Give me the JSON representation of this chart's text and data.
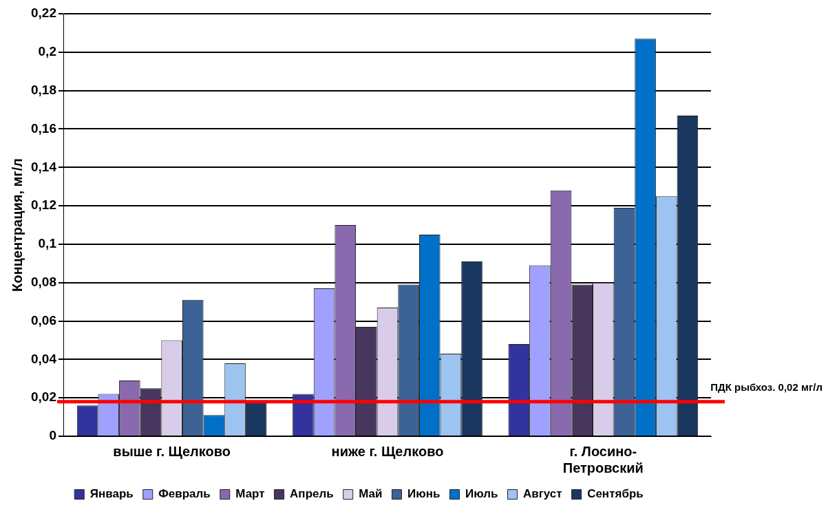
{
  "chart_data": {
    "type": "bar",
    "ylabel": "Концентрация, мг/л",
    "categories": [
      "выше г. Щелково",
      "ниже г. Щелково",
      "г. Лосино-Петровский"
    ],
    "series": [
      {
        "name": "Январь",
        "color": "#3333a0",
        "values": [
          0.016,
          0.022,
          0.048
        ]
      },
      {
        "name": "Февраль",
        "color": "#a0a0ff",
        "values": [
          0.022,
          0.077,
          0.089
        ]
      },
      {
        "name": "Март",
        "color": "#8a6aae",
        "values": [
          0.029,
          0.11,
          0.128
        ]
      },
      {
        "name": "Апрель",
        "color": "#47375e",
        "values": [
          0.025,
          0.057,
          0.079
        ]
      },
      {
        "name": "Май",
        "color": "#d8cce8",
        "values": [
          0.05,
          0.067,
          0.08
        ]
      },
      {
        "name": "Июнь",
        "color": "#3d6296",
        "values": [
          0.071,
          0.079,
          0.119
        ]
      },
      {
        "name": "Июль",
        "color": "#0070c8",
        "values": [
          0.011,
          0.105,
          0.207
        ]
      },
      {
        "name": "Август",
        "color": "#9dc3f0",
        "values": [
          0.038,
          0.043,
          0.125
        ]
      },
      {
        "name": "Сентябрь",
        "color": "#1a3760",
        "values": [
          0.018,
          0.091,
          0.167
        ]
      }
    ],
    "ylim": [
      0,
      0.22
    ],
    "yticks": [
      0,
      {
        "value": 0.02,
        "label": "0,02"
      },
      {
        "value": 0.04,
        "label": "0,04"
      },
      {
        "value": 0.06,
        "label": "0,06"
      },
      {
        "value": 0.08,
        "label": "0,08"
      },
      {
        "value": 0.1,
        "label": "0,1"
      },
      {
        "value": 0.12,
        "label": "0,12"
      },
      {
        "value": 0.14,
        "label": "0,14"
      },
      {
        "value": 0.16,
        "label": "0,16"
      },
      {
        "value": 0.18,
        "label": "0,18"
      },
      {
        "value": 0.2,
        "label": "0,2"
      },
      {
        "value": 0.22,
        "label": "0,22"
      }
    ],
    "grid": "y",
    "legend": "bottom",
    "ref_lines": [
      {
        "axis": "y",
        "value": 0.018,
        "label": "ПДК рыбхоз. 0,02 мг/л",
        "color": "#ff0000"
      }
    ]
  }
}
